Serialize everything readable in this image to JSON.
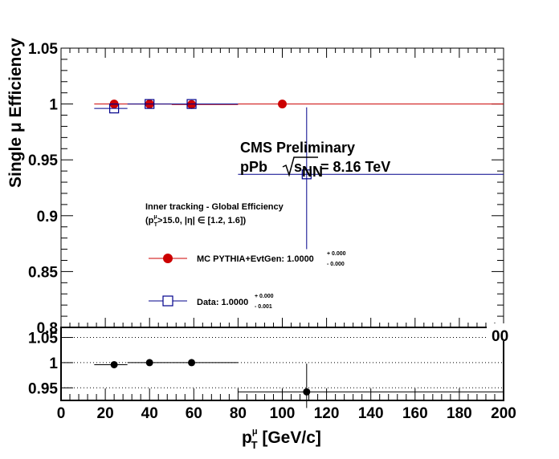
{
  "chart_data": [
    {
      "panel": "efficiency",
      "type": "scatter",
      "xlim": [
        0,
        200
      ],
      "ylim": [
        0.8,
        1.05
      ],
      "ylabel": "Single  μ Efficiency",
      "yticks": [
        "0.8",
        "0.85",
        "0.9",
        "0.95",
        "1",
        "1.05"
      ],
      "xticks": [
        "0",
        "20",
        "40",
        "60",
        "80",
        "100",
        "120",
        "140",
        "160",
        "180",
        "200"
      ],
      "series": [
        {
          "name": "MC PYTHIA+EvtGen",
          "color": "#cc0000",
          "marker": "filled-circle",
          "points": [
            {
              "x": 24,
              "y": 1.0,
              "xlo": 15,
              "xhi": 30
            },
            {
              "x": 40,
              "y": 1.0,
              "xlo": 30,
              "xhi": 50
            },
            {
              "x": 59,
              "y": 0.9995,
              "xlo": 50,
              "xhi": 80
            },
            {
              "x": 100,
              "y": 1.0,
              "xlo": 80,
              "xhi": 200
            }
          ]
        },
        {
          "name": "Data",
          "color": "#00008b",
          "marker": "open-square",
          "points": [
            {
              "x": 24,
              "y": 0.996,
              "xlo": 15,
              "xhi": 30
            },
            {
              "x": 40,
              "y": 1.0,
              "xlo": 30,
              "xhi": 50
            },
            {
              "x": 59,
              "y": 1.0,
              "xlo": 50,
              "xhi": 80
            },
            {
              "x": 111,
              "y": 0.937,
              "xlo": 80,
              "xhi": 200,
              "ylo": 0.87,
              "yhi": 0.997
            }
          ]
        }
      ]
    },
    {
      "panel": "ratio",
      "type": "scatter",
      "xlim": [
        0,
        200
      ],
      "ylim": [
        0.925,
        1.07
      ],
      "xlabel_main": "p",
      "xlabel_sub": "T",
      "xlabel_sup": "μ",
      "xlabel_unit": " [GeV/c]",
      "yticks": [
        "0.95",
        "1",
        "1.05"
      ],
      "xticks": [
        "0",
        "20",
        "40",
        "60",
        "80",
        "100",
        "120",
        "140",
        "160",
        "180",
        "200"
      ],
      "dotted_lines": [
        0.95,
        1.0,
        1.05
      ],
      "series": [
        {
          "name": "",
          "color": "#000000",
          "marker": "filled-circle",
          "points": [
            {
              "x": 24,
              "y": 0.996,
              "xlo": 15,
              "xhi": 30
            },
            {
              "x": 40,
              "y": 1.0,
              "xlo": 30,
              "xhi": 50
            },
            {
              "x": 59,
              "y": 1.0,
              "xlo": 50,
              "xhi": 80
            },
            {
              "x": 111,
              "y": 0.942,
              "xlo": 80,
              "xhi": 200,
              "ylo": 0.91,
              "yhi": 0.998
            }
          ]
        }
      ]
    }
  ],
  "annotations": {
    "cms_label": "CMS Preliminary",
    "system_label": "pPb",
    "energy_label": "= 8.16 TeV",
    "energy_sqrt_s": "s",
    "energy_sub": "NN",
    "cut_title": "Inner tracking - Global Efficiency",
    "cut_line": "(p",
    "cut_sub": "T",
    "cut_sup": "μ",
    "cut_rest": ">15.0, |η| ∈ [1.2, 1.6])"
  },
  "legend": {
    "mc_label": "MC PYTHIA+EvtGen: 1.0000",
    "mc_up": "+ 0.000",
    "mc_down": "- 0.000",
    "data_label": "Data: 1.0000",
    "data_up": "+ 0.000",
    "data_down": "- 0.001"
  },
  "overlap_tick_text": "00"
}
